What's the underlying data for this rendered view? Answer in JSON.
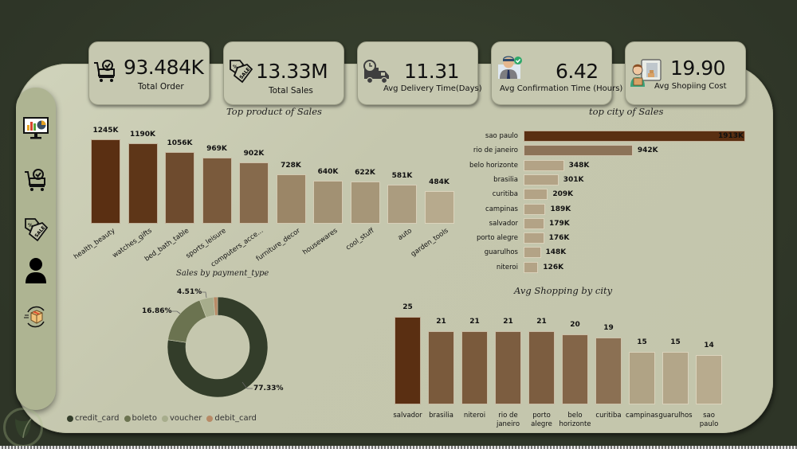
{
  "kpis": [
    {
      "value": "93.484K",
      "label": "Total Order",
      "icon": "cart-check-icon"
    },
    {
      "value": "13.33M",
      "label": "Total Sales",
      "icon": "sale-tag-icon"
    },
    {
      "value": "11.31",
      "label": "Avg Delivery Time(Days)",
      "icon": "delivery-truck-icon"
    },
    {
      "value": "6.42",
      "label": "Avg Confirmation Time (Hours)",
      "icon": "person-confirmed-icon"
    },
    {
      "value": "19.90",
      "label": "Avg Shopiing Cost",
      "icon": "courier-icon"
    }
  ],
  "sidebar": {
    "items": [
      {
        "name": "dashboard",
        "icon": "monitor-chart-icon"
      },
      {
        "name": "orders",
        "icon": "cart-check-icon"
      },
      {
        "name": "sales",
        "icon": "sale-tag-icon"
      },
      {
        "name": "customers",
        "icon": "user-icon"
      },
      {
        "name": "delivery",
        "icon": "package-cycle-icon"
      }
    ]
  },
  "chart_data": [
    {
      "type": "bar",
      "title": "Top product of Sales",
      "xlabel": "",
      "ylabel": "",
      "categories": [
        "health_beauty",
        "watches_gifts",
        "bed_bath_table",
        "sports_leisure",
        "computers_acce...",
        "furniture_decor",
        "housewares",
        "cool_stuff",
        "auto",
        "garden_tools"
      ],
      "values": [
        1245,
        1190,
        1056,
        969,
        902,
        728,
        640,
        622,
        581,
        484
      ],
      "value_labels": [
        "1245K",
        "1190K",
        "1056K",
        "969K",
        "902K",
        "728K",
        "640K",
        "622K",
        "581K",
        "484K"
      ],
      "unit": "K",
      "ylim": [
        0,
        1245
      ],
      "grid": false,
      "colors": [
        "#5a2f12",
        "#5e3618",
        "#6e4b2e",
        "#7a5a3c",
        "#866a4c",
        "#9b8667",
        "#a29173",
        "#a69678",
        "#ab9c7f",
        "#b7aa8d"
      ]
    },
    {
      "type": "bar",
      "orientation": "horizontal",
      "title": "top city of Sales",
      "categories": [
        "sao paulo",
        "rio de janeiro",
        "belo horizonte",
        "brasilia",
        "curitiba",
        "campinas",
        "salvador",
        "porto alegre",
        "guarulhos",
        "niteroi"
      ],
      "values": [
        1913,
        942,
        348,
        301,
        209,
        189,
        179,
        176,
        148,
        126
      ],
      "value_labels": [
        "1913K",
        "942K",
        "348K",
        "301K",
        "209K",
        "189K",
        "179K",
        "176K",
        "148K",
        "126K"
      ],
      "unit": "K",
      "xlim": [
        0,
        1913
      ],
      "grid": false,
      "colors": [
        "#5a2f12",
        "#8c7358",
        "#b3a386",
        "#b3a386",
        "#b3a386",
        "#b3a386",
        "#b3a386",
        "#b3a386",
        "#b3a386",
        "#b3a386"
      ]
    },
    {
      "type": "pie",
      "variant": "donut",
      "title": "Sales by payment_type",
      "categories": [
        "credit_card",
        "boleto",
        "voucher",
        "debit_card"
      ],
      "values": [
        77.33,
        16.86,
        4.51,
        1.3
      ],
      "value_labels": [
        "77.33%",
        "16.86%",
        "4.51%",
        ""
      ],
      "colors": [
        "#333d2a",
        "#6b7350",
        "#a7ad8c",
        "#b78a66"
      ],
      "legend": "bottom-left"
    },
    {
      "type": "bar",
      "title": "Avg Shopping by city",
      "categories": [
        "salvador",
        "brasilia",
        "niteroi",
        "rio de janeiro",
        "porto alegre",
        "belo horizonte",
        "curitiba",
        "campinas",
        "guarulhos",
        "sao paulo"
      ],
      "values": [
        25,
        21,
        21,
        21,
        21,
        20,
        19,
        15,
        15,
        14
      ],
      "value_labels": [
        "25",
        "21",
        "21",
        "21",
        "21",
        "20",
        "19",
        "15",
        "15",
        "14"
      ],
      "ylim": [
        0,
        25
      ],
      "grid": false,
      "colors": [
        "#5a2f12",
        "#7a5a3c",
        "#7a5a3c",
        "#7c5d40",
        "#7c5d40",
        "#836548",
        "#8b7053",
        "#b0a385",
        "#b3a689",
        "#b8ab8e"
      ]
    }
  ]
}
